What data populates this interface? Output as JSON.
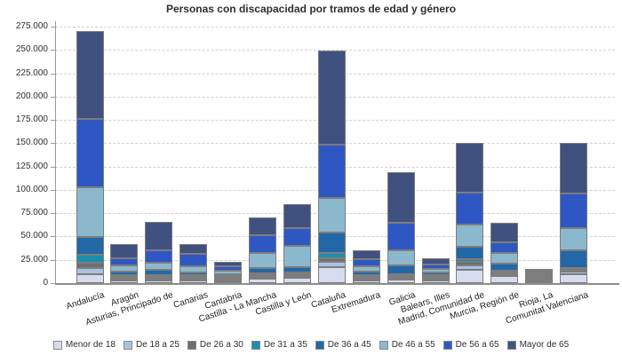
{
  "chart_data": {
    "type": "bar",
    "stacked": true,
    "title": "Personas con discapacidad por tramos de edad y género",
    "categories": [
      "Andalucía",
      "Aragón",
      "Asturias, Principado de",
      "Canarias",
      "Cantabria",
      "Castilla - La Mancha",
      "Castilla y León",
      "Cataluña",
      "Extremadura",
      "Galicia",
      "Balears, Illes",
      "Madrid, Comunidad de",
      "Murcia, Región de",
      "Rioja, La",
      "Comunitat Valenciana"
    ],
    "series": [
      {
        "name": "Menor de 18",
        "color": "#d7dbee",
        "values": [
          9500,
          2800,
          2500,
          2500,
          1500,
          4500,
          5400,
          17500,
          2500,
          4000,
          3000,
          14500,
          7500,
          1000,
          10000
        ]
      },
      {
        "name": "De 18 a 25",
        "color": "#a9c2e0",
        "values": [
          6700,
          700,
          600,
          800,
          400,
          1000,
          1200,
          5700,
          800,
          2000,
          700,
          5000,
          1500,
          300,
          2000
        ]
      },
      {
        "name": "De 26 a 30",
        "color": "#6e6e6e",
        "values": [
          5700,
          600,
          600,
          600,
          400,
          900,
          1000,
          3800,
          700,
          1500,
          500,
          3200,
          1000,
          200,
          1500
        ]
      },
      {
        "name": "De 31 a 35",
        "color": "#1b8dad",
        "values": [
          8600,
          1200,
          1300,
          1100,
          700,
          1400,
          1300,
          5700,
          1000,
          2000,
          800,
          3200,
          1500,
          400,
          2500
        ]
      },
      {
        "name": "De 36 a 45",
        "color": "#2268a8",
        "values": [
          19000,
          4500,
          5900,
          3300,
          2000,
          6500,
          6500,
          21500,
          4500,
          9000,
          3500,
          13000,
          8500,
          1300,
          19000
        ]
      },
      {
        "name": "De 46 a 55",
        "color": "#8cb8cd",
        "values": [
          53500,
          7200,
          8900,
          7000,
          4500,
          16500,
          23000,
          37000,
          6500,
          16500,
          4500,
          24000,
          11000,
          1500,
          24000
        ]
      },
      {
        "name": "De 56 a 65",
        "color": "#2f57c4",
        "values": [
          73000,
          8000,
          13300,
          15300,
          6500,
          19500,
          19500,
          57500,
          8000,
          29500,
          6000,
          34500,
          12500,
          2300,
          37000
        ]
      },
      {
        "name": "Mayor de 65",
        "color": "#41517f",
        "values": [
          94000,
          16500,
          33000,
          11000,
          7000,
          20000,
          27000,
          101000,
          11000,
          54000,
          7500,
          52500,
          21500,
          3000,
          54000
        ]
      }
    ],
    "ylim": [
      0,
      275000
    ],
    "ytick_step": 25000,
    "yticks": [
      "0",
      "25.000",
      "50.000",
      "75.000",
      "100.000",
      "125.000",
      "150.000",
      "175.000",
      "200.000",
      "225.000",
      "250.000",
      "275.000"
    ],
    "grid": "horizontal-dashed",
    "legend_position": "bottom"
  },
  "colors": {
    "background": "#ffffff",
    "bar_border": "#7d7d7d",
    "axis": "#8e8e8e",
    "gridline": "#d2d2d2",
    "text": "#2e2e2e"
  }
}
